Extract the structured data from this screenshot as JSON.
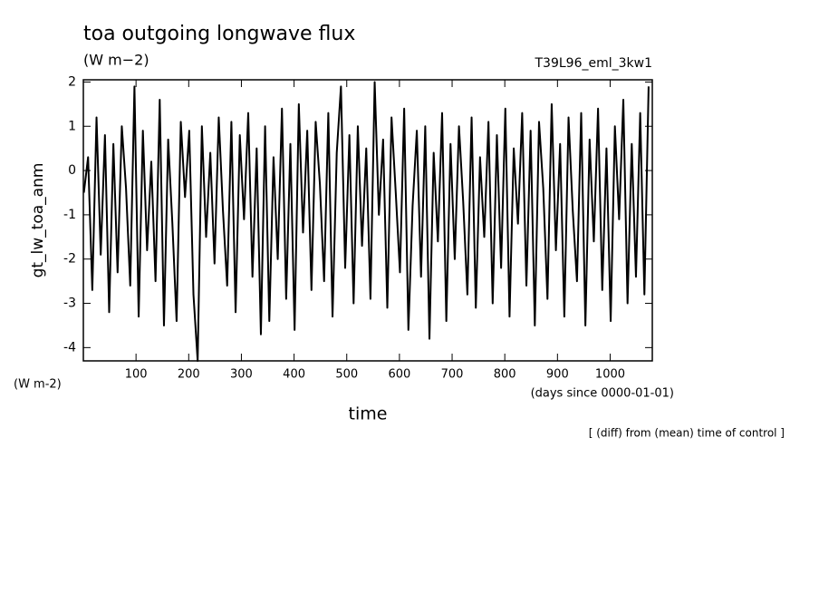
{
  "chart_data": {
    "type": "line",
    "title": "toa outgoing longwave flux",
    "subtitle": "(W m−2)",
    "run_label": "T39L96_eml_3kw1",
    "y_label": "gt_lw_toa_anm",
    "y_units": "(W m-2)",
    "x_label": "time",
    "x_units": "(days since 0000-01-01)",
    "note": "[ (diff) from (mean) time of control ]",
    "color": "#000000",
    "xlim": [
      0,
      1080
    ],
    "ylim": [
      -4.3,
      2.05
    ],
    "xticks": [
      100,
      200,
      300,
      400,
      500,
      600,
      700,
      800,
      900,
      1000
    ],
    "yticks": [
      -4,
      -3,
      -2,
      -1,
      0,
      1,
      2
    ],
    "x": [
      1,
      9,
      17,
      25,
      33,
      41,
      49,
      57,
      65,
      73,
      81,
      89,
      97,
      105,
      113,
      121,
      129,
      137,
      145,
      153,
      161,
      169,
      177,
      185,
      193,
      201,
      209,
      217,
      225,
      233,
      241,
      249,
      257,
      265,
      273,
      281,
      289,
      297,
      305,
      313,
      321,
      329,
      337,
      345,
      353,
      361,
      369,
      377,
      385,
      393,
      401,
      409,
      417,
      425,
      433,
      441,
      449,
      457,
      465,
      473,
      481,
      489,
      497,
      505,
      513,
      521,
      529,
      537,
      545,
      553,
      561,
      569,
      577,
      585,
      593,
      601,
      609,
      617,
      625,
      633,
      641,
      649,
      657,
      665,
      673,
      681,
      689,
      697,
      705,
      713,
      721,
      729,
      737,
      745,
      753,
      761,
      769,
      777,
      785,
      793,
      801,
      809,
      817,
      825,
      833,
      841,
      849,
      857,
      865,
      873,
      881,
      889,
      897,
      905,
      913,
      921,
      929,
      937,
      945,
      953,
      961,
      969,
      977,
      985,
      993,
      1001,
      1009,
      1017,
      1025,
      1033,
      1041,
      1049,
      1057,
      1065,
      1073
    ],
    "values": [
      -0.5,
      0.3,
      -2.7,
      1.2,
      -1.9,
      0.8,
      -3.2,
      0.6,
      -2.3,
      1.0,
      -0.4,
      -2.6,
      1.9,
      -3.3,
      0.9,
      -1.8,
      0.2,
      -2.5,
      1.6,
      -3.5,
      0.7,
      -1.2,
      -3.4,
      1.1,
      -0.6,
      0.9,
      -2.8,
      -4.3,
      1.0,
      -1.5,
      0.4,
      -2.1,
      1.2,
      -0.9,
      -2.6,
      1.1,
      -3.2,
      0.8,
      -1.1,
      1.3,
      -2.4,
      0.5,
      -3.7,
      1.0,
      -3.4,
      0.3,
      -2.0,
      1.4,
      -2.9,
      0.6,
      -3.6,
      1.5,
      -1.4,
      0.9,
      -2.7,
      1.1,
      -0.3,
      -2.5,
      1.3,
      -3.3,
      0.4,
      1.9,
      -2.2,
      0.8,
      -3.0,
      1.0,
      -1.7,
      0.5,
      -2.9,
      2.0,
      -1.0,
      0.7,
      -3.1,
      1.2,
      -0.5,
      -2.3,
      1.4,
      -3.6,
      -0.8,
      0.9,
      -2.4,
      1.0,
      -3.8,
      0.4,
      -1.6,
      1.3,
      -3.4,
      0.6,
      -2.0,
      1.0,
      -0.7,
      -2.8,
      1.2,
      -3.1,
      0.3,
      -1.5,
      1.1,
      -3.0,
      0.8,
      -2.2,
      1.4,
      -3.3,
      0.5,
      -1.2,
      1.3,
      -2.6,
      0.9,
      -3.5,
      1.1,
      -0.4,
      -2.9,
      1.5,
      -1.8,
      0.6,
      -3.3,
      1.2,
      -0.9,
      -2.5,
      1.3,
      -3.5,
      0.7,
      -1.6,
      1.4,
      -2.7,
      0.5,
      -3.4,
      1.0,
      -1.1,
      1.6,
      -3.0,
      0.6,
      -2.4,
      1.3,
      -2.8,
      1.9
    ]
  }
}
